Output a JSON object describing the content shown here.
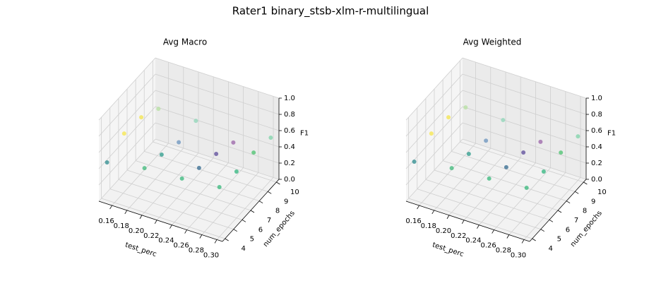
{
  "title": "Rater1 binary_stsb-xlm-r-multilingual",
  "chart_data": [
    {
      "type": "scatter",
      "title": "Avg Macro",
      "x_label": "test_perc",
      "y_label": "num_epochs",
      "z_label": "F1",
      "x": [
        0.15,
        0.15,
        0.15,
        0.15,
        0.2,
        0.2,
        0.2,
        0.2,
        0.25,
        0.25,
        0.25,
        0.25,
        0.3,
        0.3,
        0.3,
        0.3
      ],
      "y": [
        4,
        6,
        8,
        10,
        4,
        6,
        8,
        10,
        4,
        6,
        8,
        10,
        4,
        6,
        8,
        10
      ],
      "z": [
        0.466,
        0.59,
        0.558,
        0.43,
        0.546,
        0.48,
        0.4,
        0.433,
        0.567,
        0.466,
        0.407,
        0.315,
        0.612,
        0.572,
        0.574,
        0.525
      ],
      "colors": [
        "#2a8a8c",
        "#f5e649",
        "#f2e34a",
        "#b5e0a0",
        "#3cb878",
        "#2a9a8a",
        "#6a93bd",
        "#8fd6b8",
        "#35b779",
        "#31688e",
        "#5b4a9a",
        "#9a63a8",
        "#35b779",
        "#2fb47c",
        "#4ac16d",
        "#7dd3a8"
      ],
      "xlim": [
        0.1425,
        0.3075
      ],
      "ylim": [
        3.7,
        10.3
      ],
      "zlim": [
        0,
        1
      ],
      "xticks": [
        0.16,
        0.18,
        {
          "value": 0.2,
          "label": "0.20"
        },
        0.22,
        0.24,
        0.26,
        0.28,
        {
          "value": 0.3,
          "label": "0.30"
        }
      ],
      "yticks": [
        4,
        5,
        6,
        7,
        8,
        9,
        10
      ],
      "zticks": [
        {
          "value": 0,
          "label": "0.0"
        },
        0.2,
        0.4,
        0.6,
        0.8,
        {
          "value": 1,
          "label": "1.0"
        }
      ]
    },
    {
      "type": "scatter",
      "title": "Avg Weighted",
      "x_label": "test_perc",
      "y_label": "num_epochs",
      "z_label": "F1",
      "x": [
        0.15,
        0.15,
        0.15,
        0.15,
        0.2,
        0.2,
        0.2,
        0.2,
        0.25,
        0.25,
        0.25,
        0.25,
        0.3,
        0.3,
        0.3,
        0.3
      ],
      "y": [
        4,
        6,
        8,
        10,
        4,
        6,
        8,
        10,
        4,
        6,
        8,
        10,
        4,
        6,
        8,
        10
      ],
      "z": [
        0.475,
        0.59,
        0.558,
        0.448,
        0.546,
        0.489,
        0.42,
        0.442,
        0.567,
        0.475,
        0.424,
        0.324,
        0.604,
        0.572,
        0.574,
        0.542
      ],
      "colors": [
        "#2a8a8c",
        "#f5e649",
        "#f2e34a",
        "#b5e0a0",
        "#3cb878",
        "#2a9a8a",
        "#6a93bd",
        "#8fd6b8",
        "#35b779",
        "#31688e",
        "#5b4a9a",
        "#9a63a8",
        "#35b779",
        "#2fb47c",
        "#4ac16d",
        "#7dd3a8"
      ],
      "xlim": [
        0.1425,
        0.3075
      ],
      "ylim": [
        3.7,
        10.3
      ],
      "zlim": [
        0,
        1
      ],
      "xticks": [
        0.16,
        0.18,
        {
          "value": 0.2,
          "label": "0.20"
        },
        0.22,
        0.24,
        0.26,
        0.28,
        {
          "value": 0.3,
          "label": "0.30"
        }
      ],
      "yticks": [
        4,
        5,
        6,
        7,
        8,
        9,
        10
      ],
      "zticks": [
        {
          "value": 0,
          "label": "0.0"
        },
        0.2,
        0.4,
        0.6,
        0.8,
        {
          "value": 1,
          "label": "1.0"
        }
      ]
    }
  ]
}
